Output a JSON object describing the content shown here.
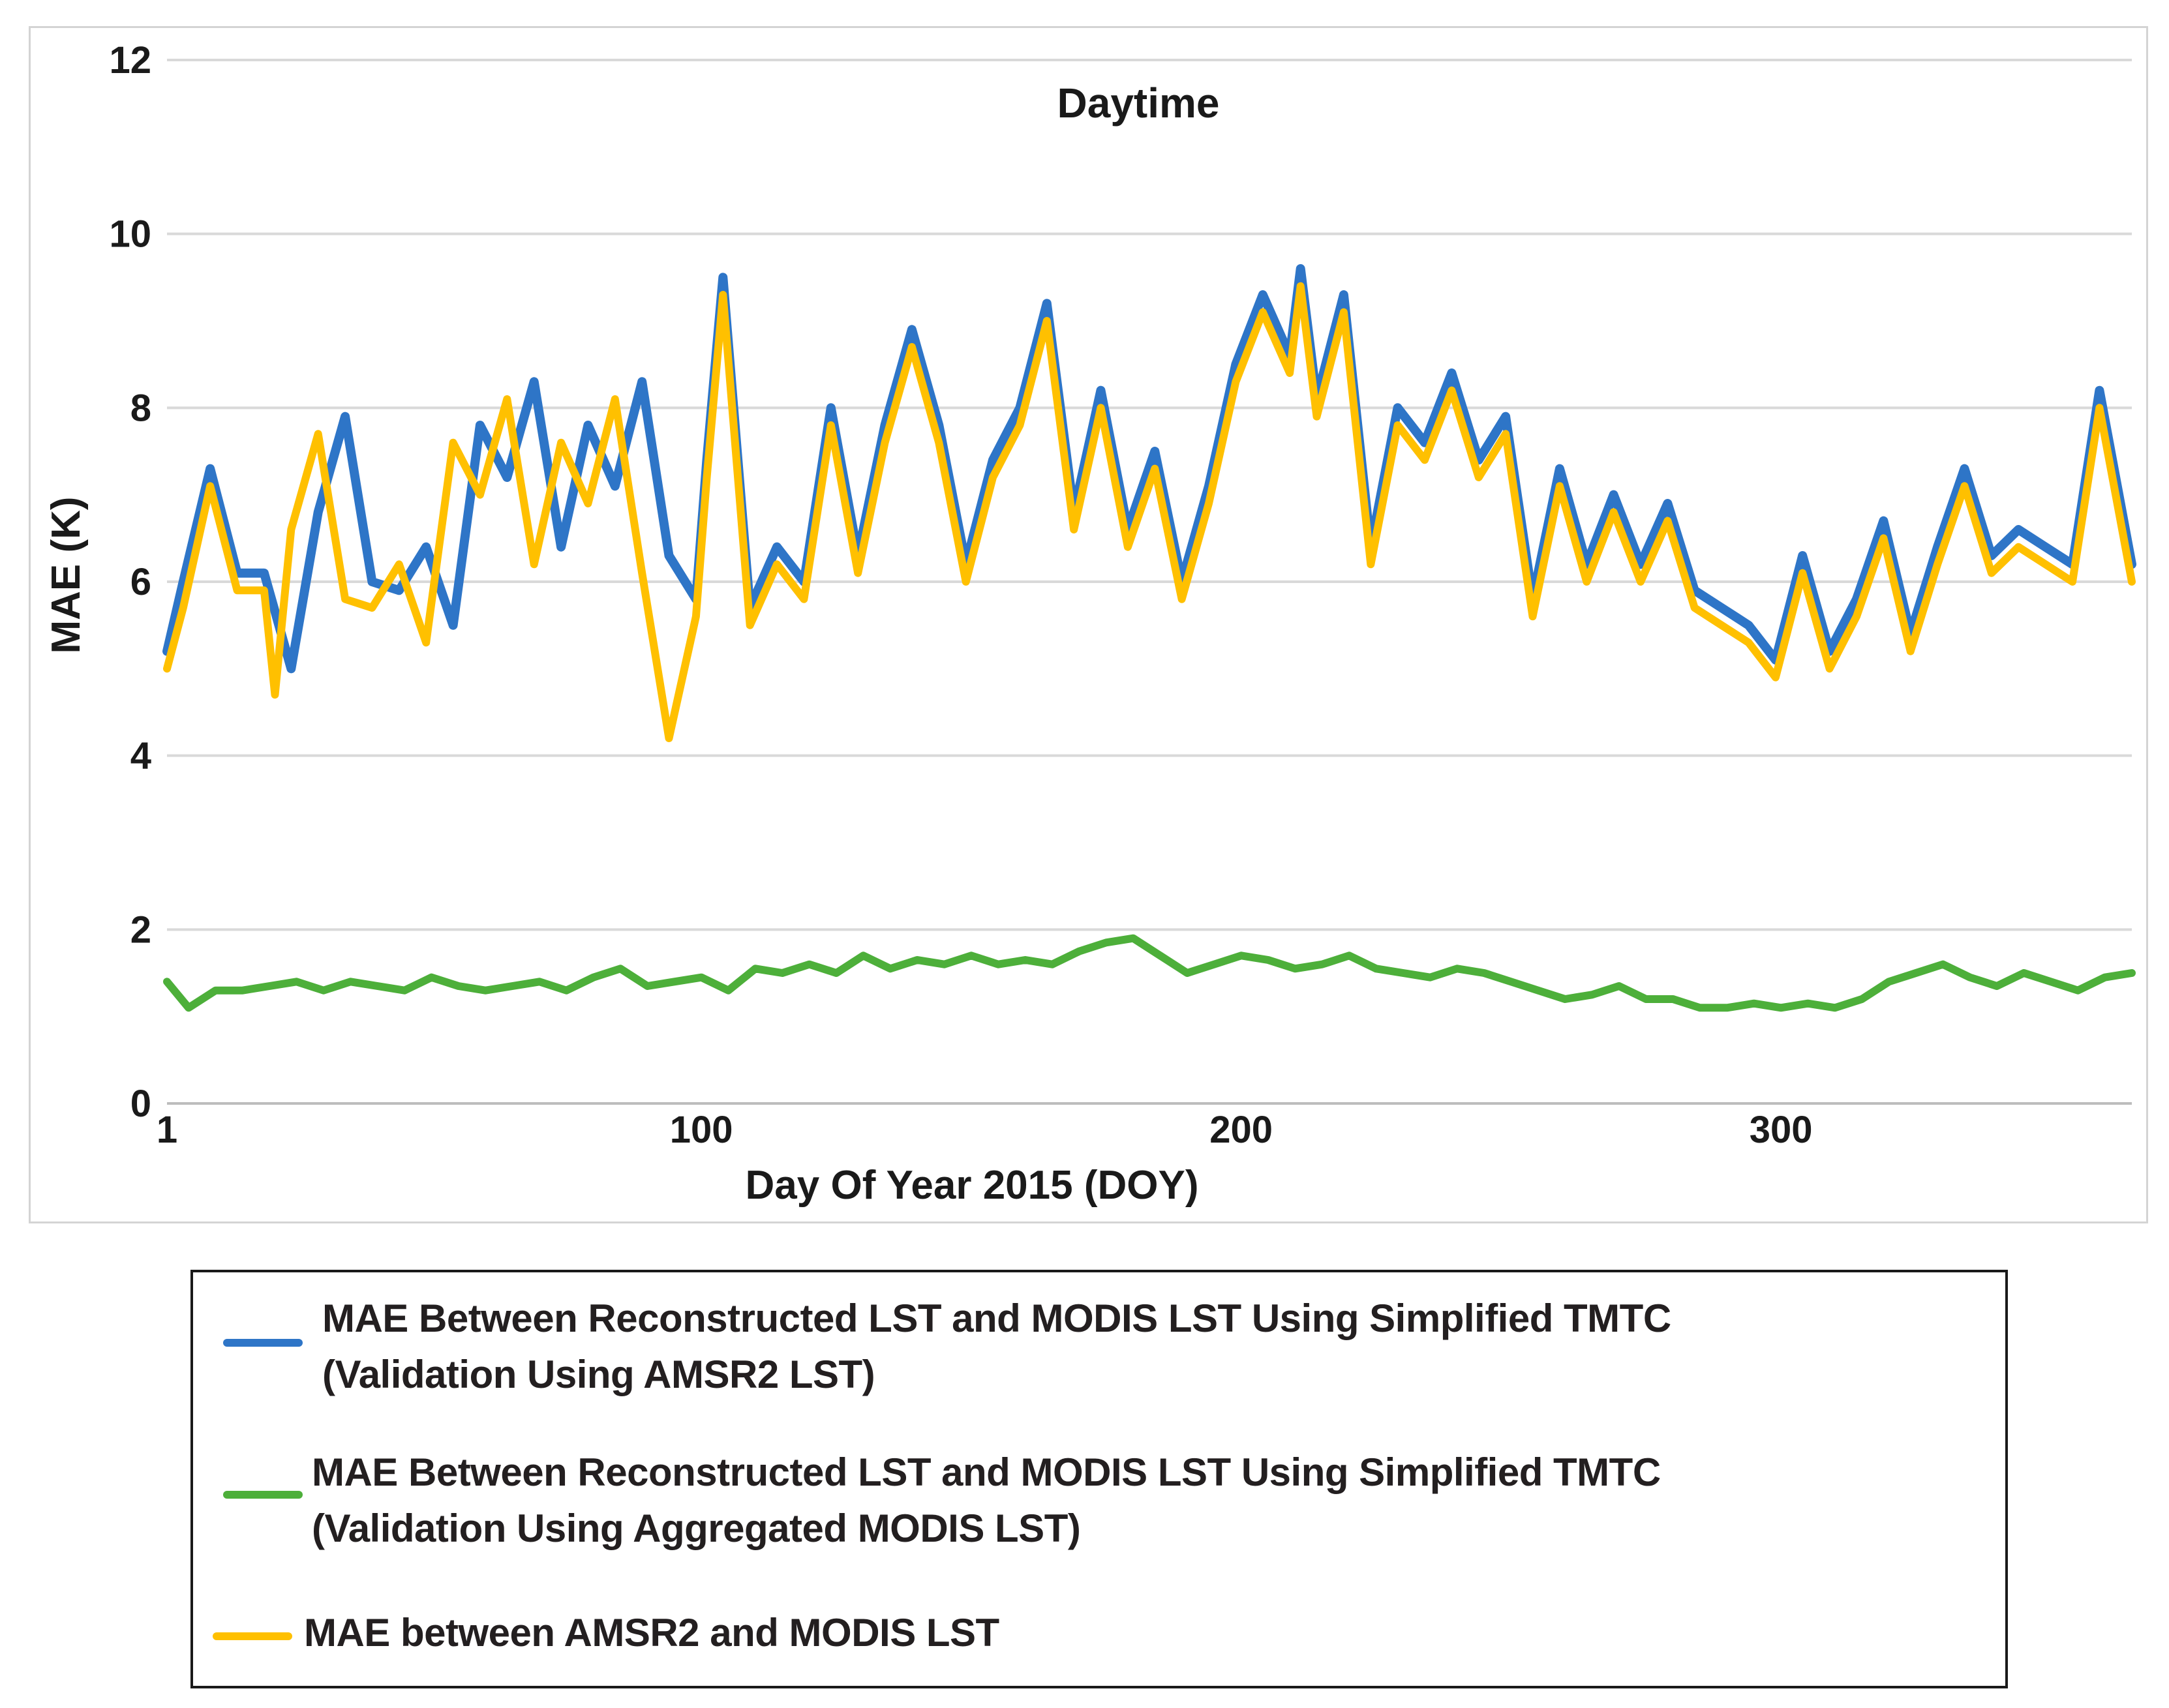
{
  "chart_data": {
    "type": "line",
    "title": "Daytime",
    "xlabel": "Day Of Year 2015 (DOY)",
    "ylabel": "MAE (K)",
    "xlim": [
      1,
      365
    ],
    "ylim": [
      0,
      12
    ],
    "xticks": [
      1,
      100,
      200,
      300
    ],
    "yticks": [
      0,
      2,
      4,
      6,
      8,
      10,
      12
    ],
    "grid": true,
    "legend_position": "below",
    "series": [
      {
        "name": "MAE Between Reconstructed LST and MODIS LST Using Simplified TMTC\n (Validation Using AMSR2 LST)",
        "color": "#2e75c7",
        "x": [
          1,
          4,
          9,
          14,
          19,
          24,
          29,
          34,
          39,
          44,
          49,
          54,
          59,
          64,
          69,
          74,
          79,
          84,
          89,
          94,
          99,
          101,
          104,
          109,
          114,
          119,
          124,
          129,
          134,
          139,
          144,
          149,
          154,
          159,
          164,
          169,
          174,
          179,
          184,
          189,
          194,
          199,
          204,
          209,
          211,
          214,
          219,
          224,
          229,
          234,
          239,
          244,
          249,
          254,
          259,
          264,
          269,
          274,
          279,
          284,
          289,
          294,
          299,
          304,
          309,
          314,
          319,
          324,
          329,
          334,
          339,
          344,
          349,
          354,
          359,
          365
        ],
        "y": [
          5.2,
          6.0,
          7.3,
          6.1,
          6.1,
          5.0,
          6.8,
          7.9,
          6.0,
          5.9,
          6.4,
          5.5,
          7.8,
          7.2,
          8.3,
          6.4,
          7.8,
          7.1,
          8.3,
          6.3,
          5.8,
          7.4,
          9.5,
          5.7,
          6.4,
          6.0,
          8.0,
          6.3,
          7.8,
          8.9,
          7.8,
          6.2,
          7.4,
          8.0,
          9.2,
          6.8,
          8.2,
          6.6,
          7.5,
          6.0,
          7.1,
          8.5,
          9.3,
          8.6,
          9.6,
          8.1,
          9.3,
          6.4,
          8.0,
          7.6,
          8.4,
          7.4,
          7.9,
          5.8,
          7.3,
          6.2,
          7.0,
          6.2,
          6.9,
          5.9,
          5.7,
          5.5,
          5.1,
          6.3,
          5.2,
          5.8,
          6.7,
          5.4,
          6.4,
          7.3,
          6.3,
          6.6,
          6.4,
          6.2,
          8.2,
          6.2
        ]
      },
      {
        "name": "MAE Between Reconstructed LST and MODIS LST Using Simplified TMTC\n(Validation Using Aggregated MODIS LST)",
        "color": "#4daf3a",
        "x": [
          1,
          5,
          10,
          15,
          20,
          25,
          30,
          35,
          40,
          45,
          50,
          55,
          60,
          65,
          70,
          75,
          80,
          85,
          90,
          95,
          100,
          105,
          110,
          115,
          120,
          125,
          130,
          135,
          140,
          145,
          150,
          155,
          160,
          165,
          170,
          175,
          180,
          185,
          190,
          195,
          200,
          205,
          210,
          215,
          220,
          225,
          230,
          235,
          240,
          245,
          250,
          255,
          260,
          265,
          270,
          275,
          280,
          285,
          290,
          295,
          300,
          305,
          310,
          315,
          320,
          325,
          330,
          335,
          340,
          345,
          350,
          355,
          360,
          365
        ],
        "y": [
          1.4,
          1.1,
          1.3,
          1.3,
          1.35,
          1.4,
          1.3,
          1.4,
          1.35,
          1.3,
          1.45,
          1.35,
          1.3,
          1.35,
          1.4,
          1.3,
          1.45,
          1.55,
          1.35,
          1.4,
          1.45,
          1.3,
          1.55,
          1.5,
          1.6,
          1.5,
          1.7,
          1.55,
          1.65,
          1.6,
          1.7,
          1.6,
          1.65,
          1.6,
          1.75,
          1.85,
          1.9,
          1.7,
          1.5,
          1.6,
          1.7,
          1.65,
          1.55,
          1.6,
          1.7,
          1.55,
          1.5,
          1.45,
          1.55,
          1.5,
          1.4,
          1.3,
          1.2,
          1.25,
          1.35,
          1.2,
          1.2,
          1.1,
          1.1,
          1.15,
          1.1,
          1.15,
          1.1,
          1.2,
          1.4,
          1.5,
          1.6,
          1.45,
          1.35,
          1.5,
          1.4,
          1.3,
          1.45,
          1.5
        ]
      },
      {
        "name": "MAE between AMSR2 and MODIS LST",
        "color": "#ffc000",
        "x": [
          1,
          4,
          9,
          14,
          19,
          21,
          24,
          29,
          34,
          39,
          44,
          49,
          54,
          59,
          64,
          69,
          74,
          79,
          84,
          89,
          94,
          99,
          101,
          104,
          109,
          114,
          119,
          124,
          129,
          134,
          139,
          144,
          149,
          154,
          159,
          164,
          169,
          174,
          179,
          184,
          189,
          194,
          199,
          204,
          209,
          211,
          214,
          219,
          224,
          229,
          234,
          239,
          244,
          249,
          254,
          259,
          264,
          269,
          274,
          279,
          284,
          289,
          294,
          299,
          304,
          309,
          314,
          319,
          324,
          329,
          334,
          339,
          344,
          349,
          354,
          359,
          365
        ],
        "y": [
          5.0,
          5.7,
          7.1,
          5.9,
          5.9,
          4.7,
          6.6,
          7.7,
          5.8,
          5.7,
          6.2,
          5.3,
          7.6,
          7.0,
          8.1,
          6.2,
          7.6,
          6.9,
          8.1,
          6.1,
          4.2,
          5.6,
          7.2,
          9.3,
          5.5,
          6.2,
          5.8,
          7.8,
          6.1,
          7.6,
          8.7,
          7.6,
          6.0,
          7.2,
          7.8,
          9.0,
          6.6,
          8.0,
          6.4,
          7.3,
          5.8,
          6.9,
          8.3,
          9.1,
          8.4,
          9.4,
          7.9,
          9.1,
          6.2,
          7.8,
          7.4,
          8.2,
          7.2,
          7.7,
          5.6,
          7.1,
          6.0,
          6.8,
          6.0,
          6.7,
          5.7,
          5.5,
          5.3,
          4.9,
          6.1,
          5.0,
          5.6,
          6.5,
          5.2,
          6.2,
          7.1,
          6.1,
          6.4,
          6.2,
          6.0,
          8.0,
          6.0
        ]
      }
    ]
  }
}
